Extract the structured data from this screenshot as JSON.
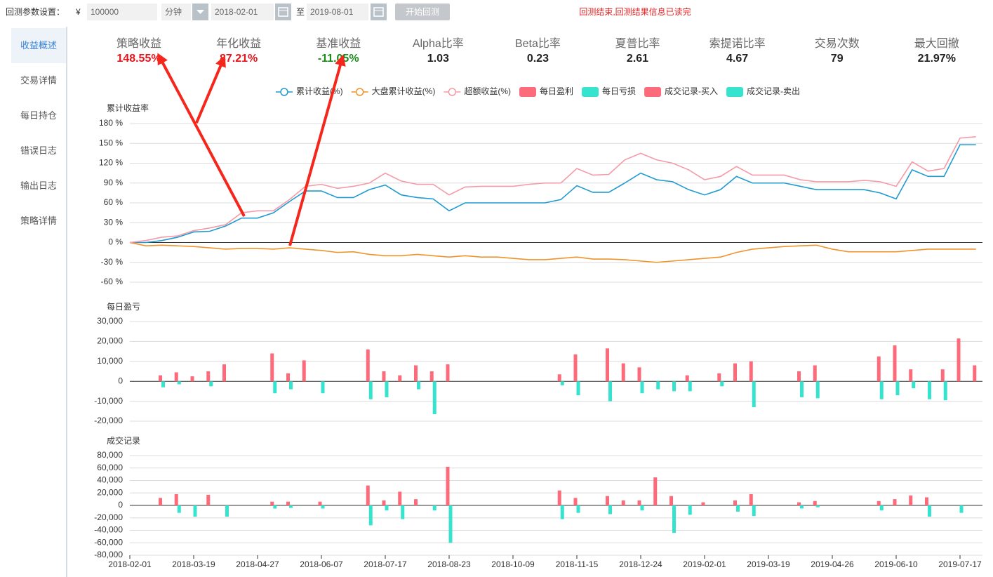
{
  "toolbar": {
    "label": "回测参数设置：",
    "currency": "¥",
    "capital": "100000",
    "frequency": "分钟",
    "start_date": "2018-02-01",
    "to": "至",
    "end_date": "2019-08-01",
    "button": "开始回测",
    "status": "回测结束,回测结果信息已读完"
  },
  "sidebar": {
    "items": [
      "收益概述",
      "交易详情",
      "每日持仓",
      "错误日志",
      "输出日志",
      "策略详情"
    ],
    "active": 0
  },
  "metrics": [
    {
      "label": "策略收益",
      "value": "148.55%",
      "color": "#e8141c"
    },
    {
      "label": "年化收益",
      "value": "87.21%",
      "color": "#e8141c"
    },
    {
      "label": "基准收益",
      "value": "-11.05%",
      "color": "#1a8a1a"
    },
    {
      "label": "Alpha比率",
      "value": "1.03",
      "color": "#222222"
    },
    {
      "label": "Beta比率",
      "value": "0.23",
      "color": "#222222"
    },
    {
      "label": "夏普比率",
      "value": "2.61",
      "color": "#222222"
    },
    {
      "label": "索提诺比率",
      "value": "4.67",
      "color": "#222222"
    },
    {
      "label": "交易次数",
      "value": "79",
      "color": "#222222"
    },
    {
      "label": "最大回撤",
      "value": "21.97%",
      "color": "#222222"
    }
  ],
  "chart_data": [
    {
      "type": "line",
      "title": "累计收益率",
      "grid": true,
      "ylim": [
        -60,
        180
      ],
      "yticks": [
        {
          "value": 180,
          "label": "180 %"
        },
        {
          "value": 150,
          "label": "150 %"
        },
        {
          "value": 120,
          "label": "120 %"
        },
        {
          "value": 90,
          "label": "90 %"
        },
        {
          "value": 60,
          "label": "60 %"
        },
        {
          "value": 30,
          "label": "30 %"
        },
        {
          "value": 0,
          "label": "0 %"
        },
        {
          "value": -30,
          "label": "-30 %"
        },
        {
          "value": -60,
          "label": "-60 %"
        }
      ],
      "series": [
        {
          "name": "累计收益(%)",
          "color": "#1f9bd1",
          "values": [
            0,
            0,
            3,
            8,
            16,
            17,
            25,
            37,
            37,
            45,
            62,
            78,
            78,
            68,
            68,
            80,
            87,
            72,
            68,
            66,
            48,
            60,
            60,
            60,
            60,
            60,
            60,
            65,
            86,
            76,
            76,
            90,
            105,
            95,
            92,
            80,
            72,
            80,
            100,
            90,
            90,
            90,
            85,
            80,
            80,
            80,
            80,
            75,
            66,
            110,
            100,
            100,
            148,
            148
          ]
        },
        {
          "name": "大盘累计收益(%)",
          "color": "#f0932b",
          "values": [
            0,
            -5,
            -4,
            -5,
            -6,
            -8,
            -10,
            -9,
            -9,
            -10,
            -8,
            -10,
            -12,
            -15,
            -14,
            -18,
            -20,
            -20,
            -18,
            -20,
            -22,
            -20,
            -22,
            -22,
            -24,
            -26,
            -26,
            -24,
            -22,
            -25,
            -25,
            -26,
            -28,
            -30,
            -28,
            -26,
            -24,
            -22,
            -15,
            -10,
            -8,
            -6,
            -5,
            -4,
            -10,
            -14,
            -14,
            -14,
            -14,
            -12,
            -10,
            -10,
            -10,
            -10
          ]
        },
        {
          "name": "超额收益(%)",
          "color": "#f59aa6",
          "values": [
            0,
            3,
            8,
            10,
            18,
            22,
            27,
            45,
            48,
            48,
            65,
            85,
            88,
            82,
            85,
            90,
            105,
            93,
            88,
            88,
            72,
            84,
            85,
            85,
            85,
            88,
            90,
            90,
            112,
            102,
            103,
            125,
            135,
            125,
            120,
            110,
            95,
            100,
            115,
            102,
            102,
            102,
            95,
            92,
            92,
            92,
            94,
            92,
            85,
            122,
            108,
            112,
            158,
            160
          ]
        }
      ]
    },
    {
      "type": "bar",
      "title": "每日盈亏",
      "grid": true,
      "ylim": [
        -20000,
        30000
      ],
      "yticks": [
        {
          "value": 30000,
          "label": "30,000"
        },
        {
          "value": 20000,
          "label": "20,000"
        },
        {
          "value": 10000,
          "label": "10,000"
        },
        0,
        {
          "value": -10000,
          "label": "-10,000"
        },
        {
          "value": -20000,
          "label": "-20,000"
        }
      ],
      "series": [
        {
          "name": "每日盈利",
          "color": "#fd6b7b",
          "values": [
            null,
            null,
            3000,
            4500,
            2500,
            5000,
            8500,
            null,
            null,
            14000,
            4000,
            10500,
            null,
            null,
            null,
            16000,
            5000,
            3000,
            8000,
            5000,
            8500,
            null,
            null,
            null,
            null,
            null,
            null,
            3500,
            13500,
            null,
            16500,
            9000,
            7000,
            null,
            null,
            3000,
            null,
            4000,
            9000,
            10000,
            null,
            null,
            5000,
            8000,
            null,
            null,
            null,
            12500,
            18000,
            6000,
            null,
            6000,
            21500,
            8000
          ]
        },
        {
          "name": "每日亏损",
          "color": "#36e3cf",
          "values": [
            null,
            null,
            -3000,
            -1500,
            null,
            -2500,
            null,
            null,
            null,
            -6000,
            -4000,
            null,
            -6000,
            null,
            null,
            -9000,
            -8000,
            null,
            -4000,
            -16500,
            null,
            null,
            null,
            null,
            null,
            null,
            null,
            -2000,
            -7000,
            null,
            -10000,
            null,
            -6000,
            -4000,
            -5000,
            -5000,
            null,
            -2500,
            null,
            -13000,
            null,
            null,
            -8000,
            -8500,
            null,
            null,
            null,
            -9000,
            -7000,
            -3500,
            -9000,
            -9500,
            null,
            null
          ]
        }
      ]
    },
    {
      "type": "bar",
      "title": "成交记录",
      "grid": true,
      "ylim": [
        -80000,
        80000
      ],
      "yticks": [
        {
          "value": 80000,
          "label": "80,000"
        },
        {
          "value": 60000,
          "label": "60,000"
        },
        {
          "value": 40000,
          "label": "40,000"
        },
        {
          "value": 20000,
          "label": "20,000"
        },
        0,
        {
          "value": -20000,
          "label": "-20,000"
        },
        {
          "value": -40000,
          "label": "-40,000"
        },
        {
          "value": -60000,
          "label": "-60,000"
        },
        {
          "value": -80000,
          "label": "-80,000"
        }
      ],
      "categories": [
        "2018-02-01",
        null,
        null,
        null,
        "2018-03-19",
        null,
        null,
        null,
        "2018-04-27",
        null,
        null,
        null,
        "2018-06-07",
        null,
        null,
        null,
        "2018-07-17",
        null,
        null,
        null,
        "2018-08-23",
        null,
        null,
        null,
        "2018-10-09",
        null,
        null,
        null,
        "2018-11-15",
        null,
        null,
        null,
        "2018-12-24",
        null,
        null,
        null,
        "2019-02-01",
        null,
        null,
        null,
        "2019-03-19",
        null,
        null,
        null,
        "2019-04-26",
        null,
        null,
        null,
        "2019-06-10",
        null,
        null,
        null,
        "2019-07-17",
        null
      ],
      "series": [
        {
          "name": "成交记录-买入",
          "color": "#fd6b7b",
          "values": [
            null,
            null,
            12000,
            18000,
            null,
            17000,
            null,
            null,
            null,
            6000,
            6000,
            null,
            6000,
            null,
            null,
            32000,
            8000,
            22000,
            10000,
            null,
            62000,
            null,
            null,
            null,
            null,
            null,
            null,
            24000,
            12000,
            null,
            15000,
            8000,
            8000,
            45000,
            15000,
            null,
            5000,
            null,
            8000,
            18000,
            null,
            null,
            5000,
            7000,
            null,
            null,
            null,
            7000,
            10000,
            16000,
            13000,
            null,
            null,
            null
          ]
        },
        {
          "name": "成交记录-卖出",
          "color": "#36e3cf",
          "values": [
            null,
            null,
            null,
            -12000,
            -18000,
            null,
            -18000,
            null,
            null,
            -5000,
            -4000,
            null,
            -5000,
            null,
            null,
            -32000,
            -8000,
            -22000,
            null,
            -8000,
            -60000,
            null,
            null,
            null,
            null,
            null,
            null,
            -22000,
            -12000,
            null,
            -14000,
            null,
            -8000,
            null,
            -44000,
            -15000,
            null,
            null,
            -10000,
            -17000,
            null,
            null,
            -5000,
            -3000,
            null,
            null,
            null,
            -8000,
            null,
            null,
            -18000,
            null,
            -12000,
            null
          ]
        }
      ]
    }
  ]
}
